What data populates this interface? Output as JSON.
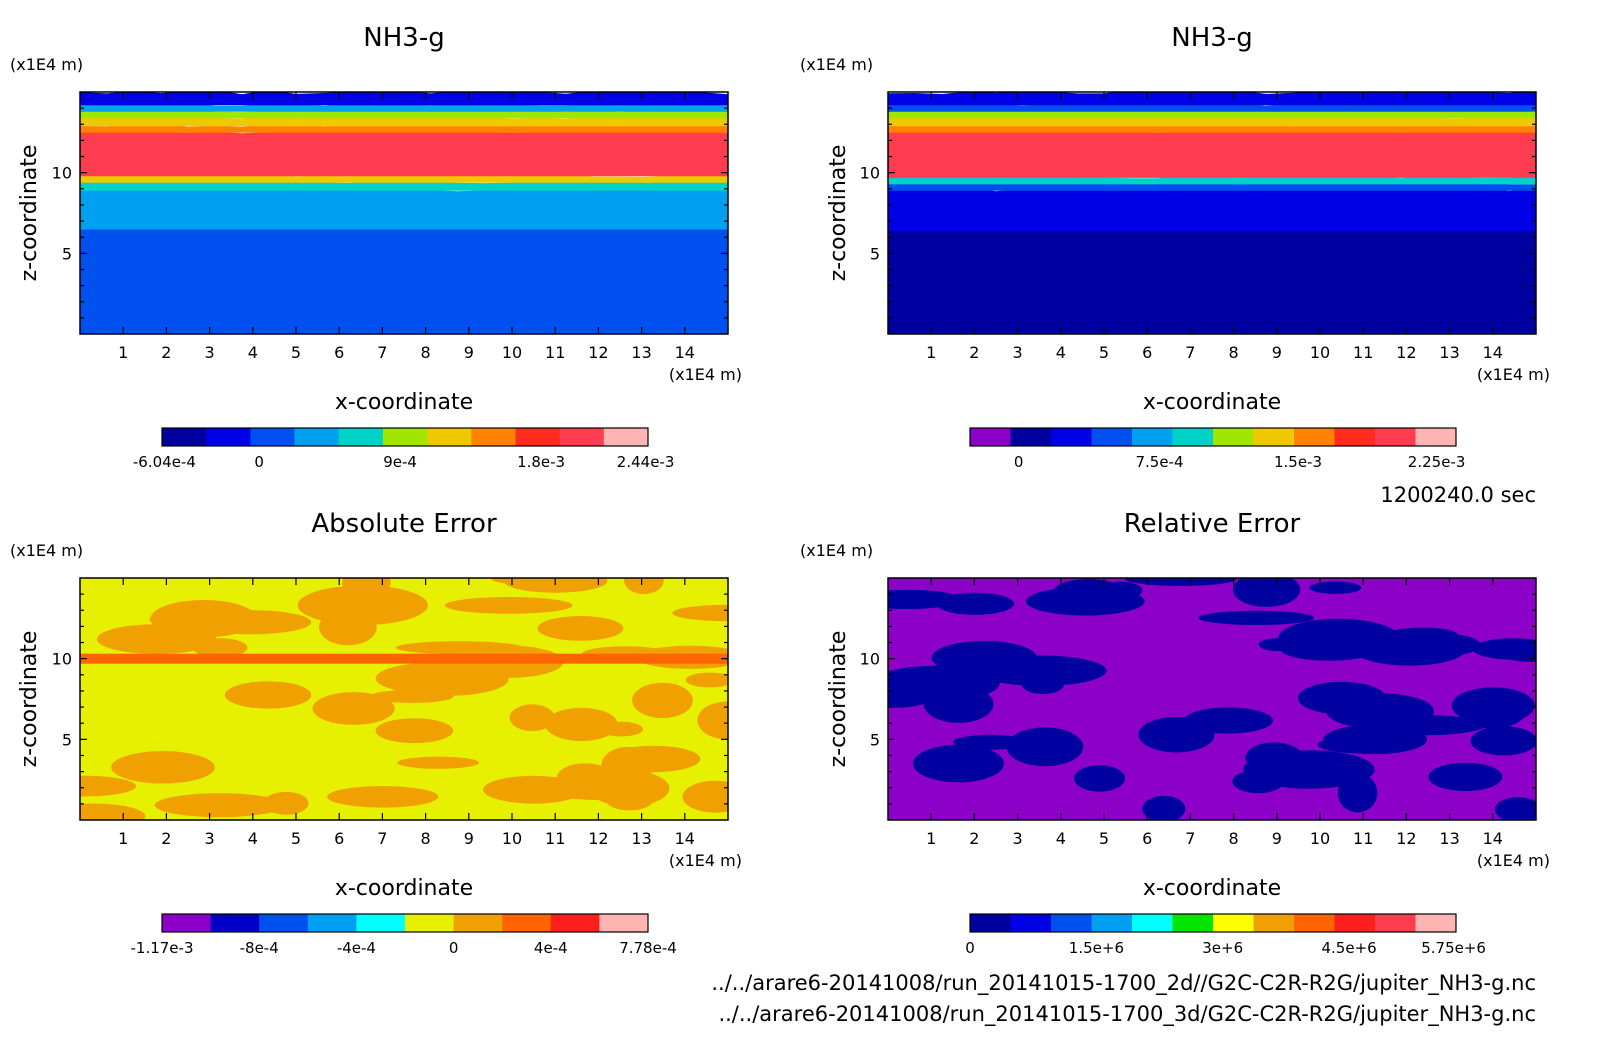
{
  "footer": {
    "time": "1200240.0 sec",
    "file1": "../../arare6-20141008/run_20141015-1700_2d//G2C-C2R-R2G/jupiter_NH3-g.nc",
    "file2": "../../arare6-20141008/run_20141015-1700_3d/G2C-C2R-R2G/jupiter_NH3-g.nc"
  },
  "chart_data": [
    {
      "type": "heatmap",
      "title": "NH3-g",
      "xlabel": "x-coordinate",
      "ylabel": "z-coordinate",
      "x_unit": "(x1E4 m)",
      "y_unit": "(x1E4 m)",
      "x_ticks": [
        "1",
        "2",
        "3",
        "4",
        "5",
        "6",
        "7",
        "8",
        "9",
        "10",
        "11",
        "12",
        "13",
        "14"
      ],
      "y_ticks": [
        "5",
        "10"
      ],
      "xlim": [
        0,
        15
      ],
      "ylim": [
        0,
        15
      ],
      "colorbar": {
        "colors": [
          "#0000a0",
          "#0000e6",
          "#0050f0",
          "#00a0f0",
          "#00d2c8",
          "#a0e600",
          "#f0c800",
          "#ff8200",
          "#ff2d1e",
          "#ff3c50",
          "#ffb4b4"
        ],
        "tick_labels": [
          "-6.04e-4",
          "0",
          "9e-4",
          "1.8e-3",
          "2.44e-3"
        ],
        "tick_pos": [
          0.005,
          0.2,
          0.49,
          0.78,
          0.995
        ]
      },
      "layers": [
        {
          "z_from": 0,
          "z_to": 6.6,
          "color": "#0050f0"
        },
        {
          "z_from": 6.6,
          "z_to": 9.0,
          "color": "#00a0f0"
        },
        {
          "z_from": 9.0,
          "z_to": 9.5,
          "color": "#00d2c8"
        },
        {
          "z_from": 9.5,
          "z_to": 9.9,
          "color": "#f0c800"
        },
        {
          "z_from": 9.9,
          "z_to": 12.6,
          "color": "#ff3c50"
        },
        {
          "z_from": 12.6,
          "z_to": 13.0,
          "color": "#ff8200"
        },
        {
          "z_from": 13.0,
          "z_to": 13.5,
          "color": "#f0c800"
        },
        {
          "z_from": 13.5,
          "z_to": 13.9,
          "color": "#a0e600"
        },
        {
          "z_from": 13.9,
          "z_to": 14.3,
          "color": "#00a0f0"
        },
        {
          "z_from": 14.3,
          "z_to": 15.0,
          "color": "#0000e6"
        }
      ]
    },
    {
      "type": "heatmap",
      "title": "NH3-g",
      "xlabel": "x-coordinate",
      "ylabel": "z-coordinate",
      "x_unit": "(x1E4 m)",
      "y_unit": "(x1E4 m)",
      "x_ticks": [
        "1",
        "2",
        "3",
        "4",
        "5",
        "6",
        "7",
        "8",
        "9",
        "10",
        "11",
        "12",
        "13",
        "14"
      ],
      "y_ticks": [
        "5",
        "10"
      ],
      "xlim": [
        0,
        15
      ],
      "ylim": [
        0,
        15
      ],
      "colorbar": {
        "colors": [
          "#8c00c8",
          "#0000a0",
          "#0000e6",
          "#0050f0",
          "#00a0f0",
          "#00d2c8",
          "#a0e600",
          "#f0c800",
          "#ff8200",
          "#ff2d1e",
          "#ff3c50",
          "#ffb4b4"
        ],
        "tick_labels": [
          "0",
          "7.5e-4",
          "1.5e-3",
          "2.25e-3"
        ],
        "tick_pos": [
          0.1,
          0.39,
          0.675,
          0.96
        ]
      },
      "layers": [
        {
          "z_from": 0,
          "z_to": 6.5,
          "color": "#0000a0"
        },
        {
          "z_from": 6.5,
          "z_to": 9.0,
          "color": "#0000e6"
        },
        {
          "z_from": 9.0,
          "z_to": 9.4,
          "color": "#0050f0"
        },
        {
          "z_from": 9.4,
          "z_to": 9.8,
          "color": "#00d2c8"
        },
        {
          "z_from": 9.8,
          "z_to": 12.6,
          "color": "#ff3c50"
        },
        {
          "z_from": 12.6,
          "z_to": 13.0,
          "color": "#ff8200"
        },
        {
          "z_from": 13.0,
          "z_to": 13.5,
          "color": "#f0c800"
        },
        {
          "z_from": 13.5,
          "z_to": 13.9,
          "color": "#a0e600"
        },
        {
          "z_from": 13.9,
          "z_to": 14.3,
          "color": "#0050f0"
        },
        {
          "z_from": 14.3,
          "z_to": 15.0,
          "color": "#0000e6"
        }
      ]
    },
    {
      "type": "heatmap",
      "title": "Absolute Error",
      "xlabel": "x-coordinate",
      "ylabel": "z-coordinate",
      "x_unit": "(x1E4 m)",
      "y_unit": "(x1E4 m)",
      "x_ticks": [
        "1",
        "2",
        "3",
        "4",
        "5",
        "6",
        "7",
        "8",
        "9",
        "10",
        "11",
        "12",
        "13",
        "14"
      ],
      "y_ticks": [
        "5",
        "10"
      ],
      "xlim": [
        0,
        15
      ],
      "ylim": [
        0,
        15
      ],
      "colorbar": {
        "colors": [
          "#8c00c8",
          "#0000c8",
          "#0050f0",
          "#00a0f0",
          "#00ffff",
          "#e6f000",
          "#f0a000",
          "#ff6400",
          "#ff1e1e",
          "#ffb4b4"
        ],
        "tick_labels": [
          "-1.17e-3",
          "-8e-4",
          "-4e-4",
          "0",
          "4e-4",
          "7.78e-4"
        ],
        "tick_pos": [
          0.0,
          0.2,
          0.4,
          0.6,
          0.8,
          1.0
        ]
      },
      "background": "#e6f000",
      "pattern": "#f0a000",
      "band": {
        "z": 10.0,
        "color": "#ff6400"
      }
    },
    {
      "type": "heatmap",
      "title": "Relative Error",
      "xlabel": "x-coordinate",
      "ylabel": "z-coordinate",
      "x_unit": "(x1E4 m)",
      "y_unit": "(x1E4 m)",
      "x_ticks": [
        "1",
        "2",
        "3",
        "4",
        "5",
        "6",
        "7",
        "8",
        "9",
        "10",
        "11",
        "12",
        "13",
        "14"
      ],
      "y_ticks": [
        "5",
        "10"
      ],
      "xlim": [
        0,
        15
      ],
      "ylim": [
        0,
        15
      ],
      "colorbar": {
        "colors": [
          "#0000a0",
          "#0000e6",
          "#0050f0",
          "#00a0f0",
          "#00ffff",
          "#00e600",
          "#ffff00",
          "#f0a000",
          "#ff6400",
          "#ff1e1e",
          "#ff3c50",
          "#ffb4b4"
        ],
        "tick_labels": [
          "0",
          "1.5e+6",
          "3e+6",
          "4.5e+6",
          "5.75e+6"
        ],
        "tick_pos": [
          0.0,
          0.26,
          0.52,
          0.78,
          0.995
        ]
      },
      "background": "#8c00c8",
      "pattern": "#0000a0"
    }
  ]
}
